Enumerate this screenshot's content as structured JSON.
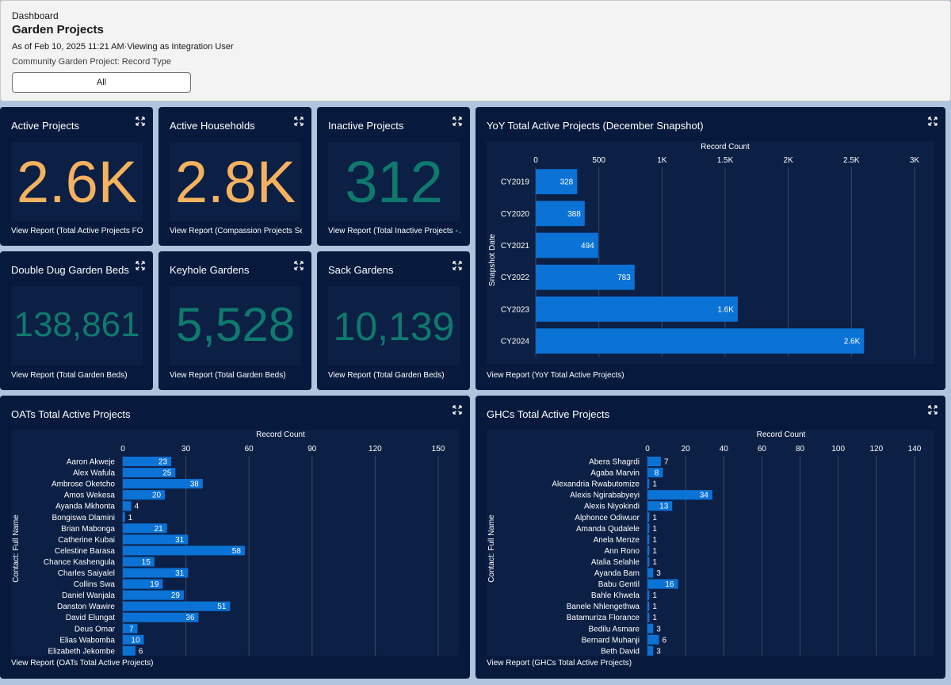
{
  "header": {
    "label": "Dashboard",
    "title": "Garden Projects",
    "meta": "As of Feb 10, 2025 11:21 AM·Viewing as Integration User",
    "filter_label": "Community Garden Project: Record Type",
    "filter_value": "All"
  },
  "colors": {
    "gold": "#f4b25f",
    "teal": "#0e7a6e",
    "bar": "#0b72d6",
    "card": "#071a3d",
    "panel": "#0c1f44"
  },
  "metrics": [
    {
      "title": "Active Projects",
      "value": "2.6K",
      "link": "View Report (Total Active Projects FOR)"
    },
    {
      "title": "Active Households",
      "value": "2.8K",
      "link": "View Report (Compassion Projects Set)"
    },
    {
      "title": "Inactive Projects",
      "value": "312",
      "link": "View Report (Total Inactive Projects - All)"
    },
    {
      "title": "Double Dug Garden Beds",
      "value": "138,861",
      "link": "View Report (Total Garden Beds)"
    },
    {
      "title": "Keyhole Gardens",
      "value": "5,528",
      "link": "View Report (Total Garden Beds)"
    },
    {
      "title": "Sack Gardens",
      "value": "10,139",
      "link": "View Report (Total Garden Beds)"
    }
  ],
  "chart_data": [
    {
      "type": "bar",
      "orientation": "horizontal",
      "title": "YoY Total Active Projects (December Snapshot)",
      "xlabel": "Record Count",
      "ylabel": "Snapshot Date",
      "xlim": [
        0,
        3000
      ],
      "ticks": [
        {
          "v": 0,
          "label": "0"
        },
        {
          "v": 500,
          "label": "500"
        },
        {
          "v": 1000,
          "label": "1K"
        },
        {
          "v": 1500,
          "label": "1.5K"
        },
        {
          "v": 2000,
          "label": "2K"
        },
        {
          "v": 2500,
          "label": "2.5K"
        },
        {
          "v": 3000,
          "label": "3K"
        }
      ],
      "categories": [
        "CY2019",
        "CY2020",
        "CY2021",
        "CY2022",
        "CY2023",
        "CY2024"
      ],
      "values": [
        328,
        388,
        494,
        783,
        1600,
        2600
      ],
      "value_labels": [
        "328",
        "388",
        "494",
        "783",
        "1.6K",
        "2.6K"
      ],
      "link": "View Report (YoY Total Active Projects)"
    },
    {
      "type": "bar",
      "orientation": "horizontal",
      "title": "OATs Total Active Projects",
      "xlabel": "Record Count",
      "ylabel": "Contact: Full Name",
      "xlim": [
        0,
        150
      ],
      "ticks": [
        {
          "v": 0,
          "label": "0"
        },
        {
          "v": 30,
          "label": "30"
        },
        {
          "v": 60,
          "label": "60"
        },
        {
          "v": 90,
          "label": "90"
        },
        {
          "v": 120,
          "label": "120"
        },
        {
          "v": 150,
          "label": "150"
        }
      ],
      "categories": [
        "Aaron Akweje",
        "Alex Wafula",
        "Ambrose Oketcho",
        "Amos Wekesa",
        "Ayanda Mkhonta",
        "Bongiswa Dlamini",
        "Brian Mabonga",
        "Catherine Kubai",
        "Celestine Barasa",
        "Chance Kashengula",
        "Charles Saiyalel",
        "Collins Swa",
        "Daniel Wanjala",
        "Danston Wawire",
        "David Elungat",
        "Deus Omar",
        "Elias Wabomba",
        "Elizabeth Jekombe"
      ],
      "values": [
        23,
        25,
        38,
        20,
        4,
        1,
        21,
        31,
        58,
        15,
        31,
        19,
        29,
        51,
        36,
        7,
        10,
        6
      ],
      "value_labels": [
        "23",
        "25",
        "38",
        "20",
        "4",
        "1",
        "21",
        "31",
        "58",
        "15",
        "31",
        "19",
        "29",
        "51",
        "36",
        "7",
        "10",
        "6"
      ],
      "link": "View Report (OATs Total Active Projects)"
    },
    {
      "type": "bar",
      "orientation": "horizontal",
      "title": "GHCs Total Active Projects",
      "xlabel": "Record Count",
      "ylabel": "Contact: Full Name",
      "xlim": [
        0,
        140
      ],
      "ticks": [
        {
          "v": 0,
          "label": "0"
        },
        {
          "v": 20,
          "label": "20"
        },
        {
          "v": 40,
          "label": "40"
        },
        {
          "v": 60,
          "label": "60"
        },
        {
          "v": 80,
          "label": "80"
        },
        {
          "v": 100,
          "label": "100"
        },
        {
          "v": 120,
          "label": "120"
        },
        {
          "v": 140,
          "label": "140"
        }
      ],
      "categories": [
        "Abera Shagrdi",
        "Agaba Marvin",
        "Alexandria Rwabutomize",
        "Alexis Ngirababyeyi",
        "Alexis Niyokindi",
        "Alphonce Odiwuor",
        "Amanda Qudalele",
        "Anela Menze",
        "Ann Rono",
        "Atalia Selahle",
        "Ayanda Bam",
        "Babu Gentil",
        "Bahle Khwela",
        "Banele Nhlengethwa",
        "Batamuriza Florance",
        "Bedilu Asmare",
        "Bernard Muhanji",
        "Beth David"
      ],
      "values": [
        7,
        8,
        1,
        34,
        13,
        1,
        1,
        1,
        1,
        1,
        3,
        16,
        1,
        1,
        1,
        3,
        6,
        3
      ],
      "value_labels": [
        "7",
        "8",
        "1",
        "34",
        "13",
        "1",
        "1",
        "1",
        "1",
        "1",
        "3",
        "16",
        "1",
        "1",
        "1",
        "3",
        "6",
        "3"
      ],
      "link": "View Report (GHCs Total Active Projects)"
    }
  ]
}
